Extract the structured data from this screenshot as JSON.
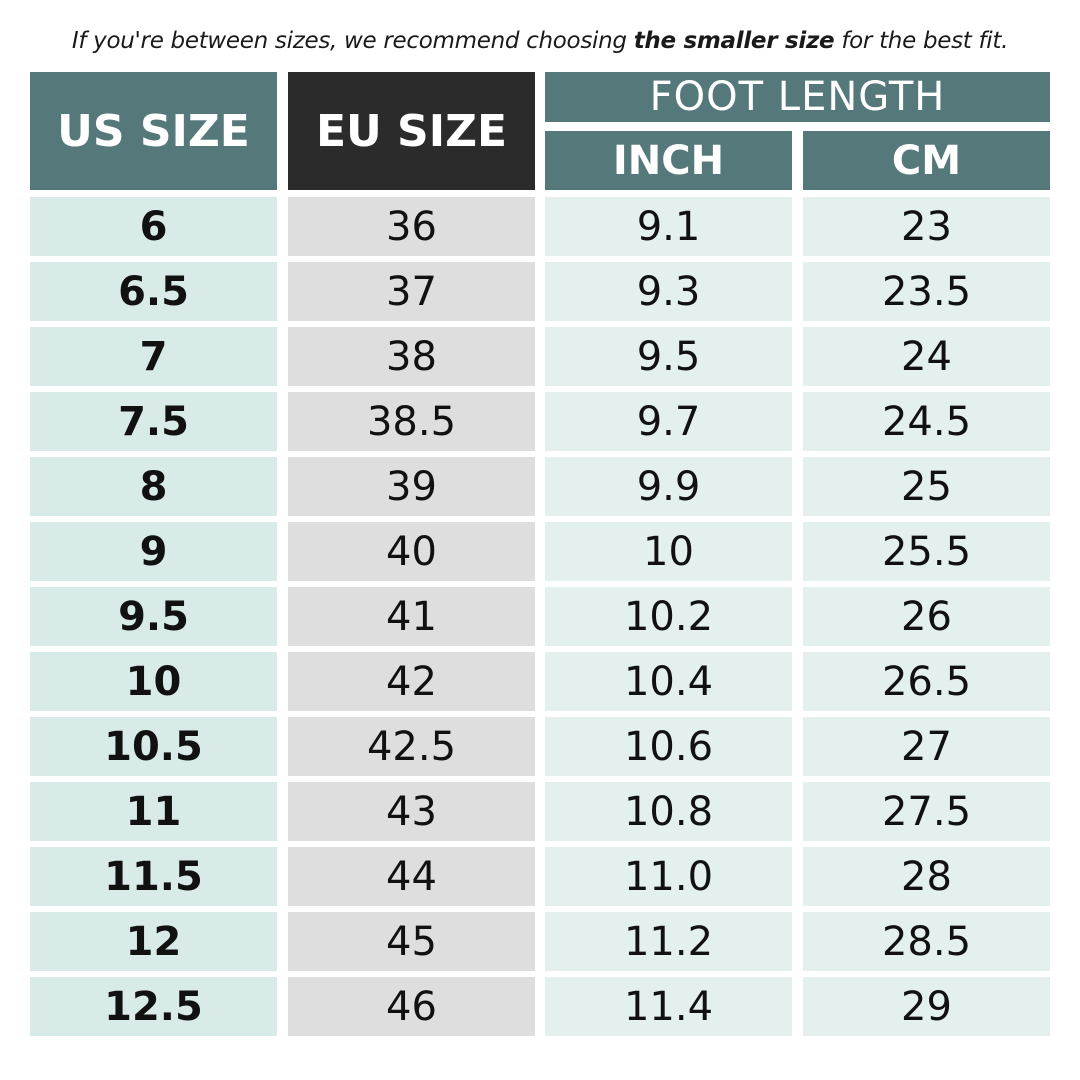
{
  "note": {
    "before": "If you're between sizes, we recommend choosing ",
    "emphasis": "the smaller size",
    "after": " for the best fit."
  },
  "headers": {
    "us_size": "US SIZE",
    "eu_size": "EU SIZE",
    "foot_length": "FOOT LENGTH",
    "inch": "INCH",
    "cm": "CM"
  },
  "colors": {
    "header_teal": "#55797a",
    "header_dark": "#2b2b2b",
    "us_cell": "#d9ebe8",
    "eu_cell": "#dedede",
    "length_cell": "#e3f0ee"
  },
  "rows": [
    {
      "us": "6",
      "eu": "36",
      "inch": "9.1",
      "cm": "23"
    },
    {
      "us": "6.5",
      "eu": "37",
      "inch": "9.3",
      "cm": "23.5"
    },
    {
      "us": "7",
      "eu": "38",
      "inch": "9.5",
      "cm": "24"
    },
    {
      "us": "7.5",
      "eu": "38.5",
      "inch": "9.7",
      "cm": "24.5"
    },
    {
      "us": "8",
      "eu": "39",
      "inch": "9.9",
      "cm": "25"
    },
    {
      "us": "9",
      "eu": "40",
      "inch": "10",
      "cm": "25.5"
    },
    {
      "us": "9.5",
      "eu": "41",
      "inch": "10.2",
      "cm": "26"
    },
    {
      "us": "10",
      "eu": "42",
      "inch": "10.4",
      "cm": "26.5"
    },
    {
      "us": "10.5",
      "eu": "42.5",
      "inch": "10.6",
      "cm": "27"
    },
    {
      "us": "11",
      "eu": "43",
      "inch": "10.8",
      "cm": "27.5"
    },
    {
      "us": "11.5",
      "eu": "44",
      "inch": "11.0",
      "cm": "28"
    },
    {
      "us": "12",
      "eu": "45",
      "inch": "11.2",
      "cm": "28.5"
    },
    {
      "us": "12.5",
      "eu": "46",
      "inch": "11.4",
      "cm": "29"
    }
  ]
}
